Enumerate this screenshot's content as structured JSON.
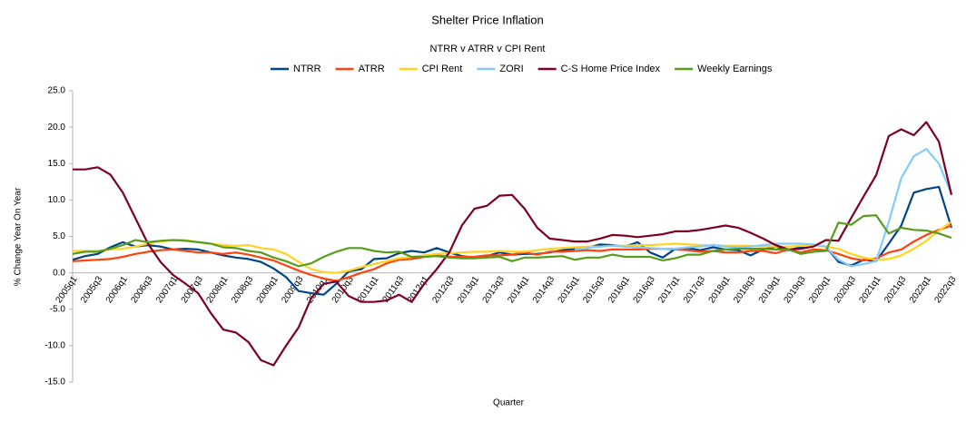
{
  "chart_data": {
    "type": "line",
    "title": "Shelter Price Inflation",
    "subtitle": "NTRR v ATRR v CPI Rent",
    "x_label": "Quarter",
    "y_label": "% Change Year On Year",
    "categories": [
      "2005q1",
      null,
      "2005q3",
      null,
      "2006q1",
      null,
      "2006q3",
      null,
      "2007q1",
      null,
      "2007q3",
      null,
      "2008q1",
      null,
      "2008q3",
      null,
      "2009q1",
      null,
      "2009q3",
      null,
      "2010q1",
      null,
      "2010q3",
      null,
      "2011q1",
      null,
      "2011q3",
      null,
      "2012q1",
      null,
      "2012q3",
      null,
      "2013q1",
      null,
      "2013q3",
      null,
      "2014q1",
      null,
      "2014q3",
      null,
      "2015q1",
      null,
      "2015q3",
      null,
      "2016q1",
      null,
      "2016q3",
      null,
      "2017q1",
      null,
      "2017q3",
      null,
      "2018q1",
      null,
      "2018q3",
      null,
      "2019q1",
      null,
      "2019q3",
      null,
      "2020q1",
      null,
      "2020q3",
      null,
      "2021q1",
      null,
      "2021q3",
      null,
      "2022q1",
      null,
      "2022q3"
    ],
    "ylim": [
      -15,
      25
    ],
    "yticks": [
      {
        "value": -15,
        "label": "-15.0"
      },
      {
        "value": -10,
        "label": "-10.0"
      },
      {
        "value": -5,
        "label": "-5.0"
      },
      {
        "value": 0,
        "label": "0.0"
      },
      {
        "value": 5,
        "label": "5.0"
      },
      {
        "value": 10,
        "label": "10.0"
      },
      {
        "value": 15,
        "label": "15.0"
      },
      {
        "value": 20,
        "label": "20.0"
      },
      {
        "value": 25,
        "label": "25.0"
      }
    ],
    "grid": false,
    "legend": "top",
    "series": [
      {
        "name": "NTRR",
        "color": "#004586",
        "values": [
          1.8,
          2.3,
          2.6,
          3.5,
          4.2,
          3.6,
          3.8,
          3.6,
          3.2,
          3.3,
          3.2,
          2.8,
          2.4,
          2.1,
          1.9,
          1.5,
          0.6,
          -0.6,
          -2.5,
          -2.8,
          -3.0,
          -1.5,
          0.2,
          0.5,
          1.9,
          2.0,
          2.7,
          3.0,
          2.8,
          3.4,
          2.8,
          2.3,
          2.1,
          2.3,
          2.8,
          2.5,
          2.6,
          2.6,
          2.8,
          3.1,
          3.3,
          3.4,
          3.9,
          3.8,
          3.6,
          4.2,
          2.8,
          2.1,
          3.3,
          3.4,
          3.1,
          3.5,
          3.2,
          3.1,
          2.4,
          3.2,
          3.6,
          3.1,
          3.5,
          3.8,
          3.6,
          1.5,
          1.0,
          1.8,
          1.6,
          4.0,
          6.5,
          11.0,
          11.5,
          11.8,
          6.2
        ]
      },
      {
        "name": "ATRR",
        "color": "#ff420e",
        "values": [
          1.6,
          1.7,
          1.8,
          1.9,
          2.2,
          2.6,
          2.9,
          3.1,
          3.2,
          3.0,
          2.8,
          2.8,
          2.6,
          2.8,
          2.5,
          2.1,
          1.7,
          1.0,
          0.3,
          -0.3,
          -0.8,
          -1.1,
          -0.6,
          0.0,
          0.5,
          1.3,
          1.8,
          1.9,
          2.2,
          2.4,
          2.2,
          2.2,
          2.2,
          2.4,
          2.4,
          2.5,
          2.8,
          2.5,
          2.9,
          2.9,
          3.0,
          3.1,
          3.0,
          3.2,
          3.2,
          3.2,
          3.3,
          3.3,
          3.2,
          3.1,
          2.9,
          3.0,
          2.8,
          2.8,
          3.0,
          3.0,
          2.7,
          3.2,
          2.8,
          3.2,
          3.1,
          2.6,
          2.0,
          1.7,
          2.0,
          2.8,
          3.2,
          4.3,
          5.2,
          5.9,
          6.5
        ]
      },
      {
        "name": "CPI Rent",
        "color": "#ffd320",
        "values": [
          3.0,
          3.0,
          3.0,
          3.2,
          3.3,
          3.6,
          4.0,
          4.3,
          4.5,
          4.5,
          4.2,
          4.0,
          3.8,
          3.7,
          3.8,
          3.4,
          3.2,
          2.6,
          1.5,
          0.5,
          0.1,
          0.0,
          0.3,
          0.8,
          1.2,
          1.6,
          2.0,
          2.2,
          2.4,
          2.6,
          2.7,
          2.8,
          2.9,
          2.9,
          3.0,
          2.9,
          2.9,
          3.1,
          3.3,
          3.4,
          3.5,
          3.6,
          3.6,
          3.7,
          3.7,
          3.8,
          3.8,
          3.9,
          4.0,
          3.9,
          3.8,
          3.8,
          3.7,
          3.7,
          3.7,
          3.6,
          3.6,
          3.6,
          3.7,
          3.7,
          3.6,
          3.3,
          2.6,
          2.1,
          1.8,
          1.9,
          2.4,
          3.3,
          4.4,
          5.8,
          7.0
        ]
      },
      {
        "name": "ZORI",
        "color": "#83caff",
        "values": [
          null,
          null,
          null,
          null,
          null,
          null,
          null,
          null,
          null,
          null,
          null,
          null,
          null,
          null,
          null,
          null,
          null,
          null,
          null,
          null,
          null,
          null,
          null,
          null,
          null,
          null,
          null,
          null,
          null,
          null,
          null,
          null,
          null,
          null,
          null,
          null,
          null,
          null,
          null,
          null,
          3.2,
          3.4,
          3.6,
          3.7,
          3.6,
          3.5,
          3.4,
          3.3,
          3.3,
          3.5,
          3.6,
          3.8,
          3.6,
          3.5,
          3.6,
          3.8,
          4.0,
          4.0,
          4.0,
          3.9,
          3.6,
          1.8,
          0.9,
          1.2,
          1.6,
          7.0,
          13.0,
          16.0,
          17.0,
          15.0,
          10.8
        ]
      },
      {
        "name": "C-S Home Price Index",
        "color": "#7e0021",
        "values": [
          14.2,
          14.2,
          14.5,
          13.5,
          11.0,
          7.5,
          4.0,
          1.5,
          -0.3,
          -1.5,
          -2.8,
          -5.5,
          -7.8,
          -8.2,
          -9.5,
          -12.0,
          -12.7,
          -10.0,
          -7.5,
          -3.5,
          -1.5,
          -1.2,
          -3.2,
          -4.0,
          -4.0,
          -3.8,
          -3.0,
          -4.0,
          -1.5,
          0.5,
          2.8,
          6.5,
          8.8,
          9.2,
          10.6,
          10.7,
          8.8,
          6.2,
          4.7,
          4.5,
          4.3,
          4.3,
          4.7,
          5.2,
          5.1,
          4.9,
          5.1,
          5.3,
          5.7,
          5.7,
          5.9,
          6.2,
          6.5,
          6.2,
          5.5,
          4.7,
          3.8,
          3.2,
          3.3,
          3.6,
          4.5,
          4.4,
          7.5,
          10.5,
          13.4,
          18.8,
          19.7,
          18.9,
          20.7,
          18.0,
          10.7
        ]
      },
      {
        "name": "Weekly Earnings",
        "color": "#579d1c",
        "values": [
          2.6,
          2.9,
          2.9,
          3.3,
          3.8,
          4.5,
          4.2,
          4.4,
          4.5,
          4.4,
          4.2,
          4.0,
          3.5,
          3.4,
          3.0,
          2.8,
          2.1,
          1.6,
          0.9,
          1.3,
          2.2,
          2.9,
          3.4,
          3.4,
          3.0,
          2.8,
          2.9,
          2.2,
          2.2,
          2.3,
          2.1,
          2.0,
          2.0,
          2.1,
          2.2,
          1.6,
          2.1,
          2.1,
          2.2,
          2.3,
          1.8,
          2.1,
          2.1,
          2.5,
          2.2,
          2.2,
          2.2,
          1.7,
          2.0,
          2.5,
          2.5,
          3.0,
          3.2,
          3.3,
          3.3,
          3.3,
          3.2,
          3.2,
          2.6,
          2.9,
          3.0,
          6.9,
          6.6,
          7.8,
          7.9,
          5.4,
          6.2,
          5.9,
          5.8,
          5.4,
          4.8
        ]
      }
    ]
  }
}
